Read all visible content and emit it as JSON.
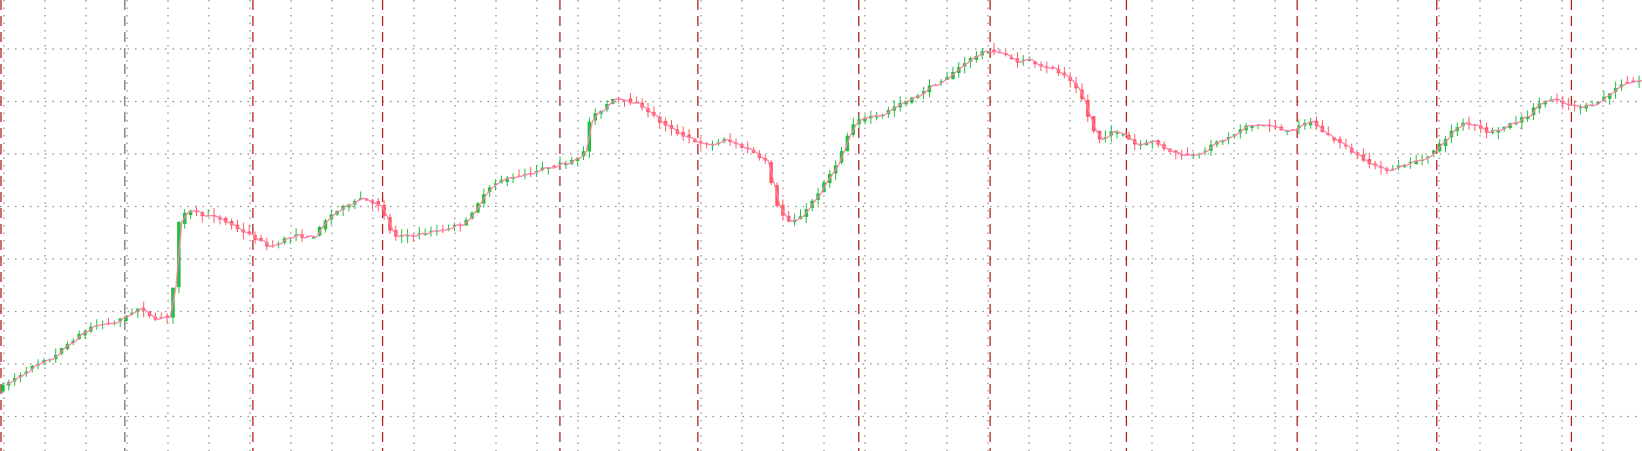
{
  "chart_data": {
    "type": "candlestick",
    "title": "",
    "xlabel": "",
    "ylabel": "",
    "axes_visible": false,
    "grid": {
      "horizontal": "dotted",
      "vertical_minor": "dotted",
      "session_separators": "dashed"
    },
    "colors": {
      "background": "#ffffff",
      "bullish": "#22c03c",
      "bearish": "#ff5a5f",
      "overlay_line": "#ff7fb0",
      "grid": "#8a8a8a",
      "separator": "#b22222"
    },
    "ylim": [
      0,
      100
    ],
    "xlim": [
      0,
      100
    ],
    "n_candles": 280,
    "session_separators_x": [
      0.0,
      7.6,
      15.4,
      23.3,
      34.1,
      42.5,
      52.3,
      60.3,
      68.6,
      79.0,
      87.5,
      95.7
    ],
    "price_path": [
      [
        0.0,
        5.2
      ],
      [
        2.0,
        11.0
      ],
      [
        3.3,
        13.5
      ],
      [
        4.5,
        18.0
      ],
      [
        5.8,
        22.0
      ],
      [
        7.3,
        23.0
      ],
      [
        8.5,
        26.5
      ],
      [
        9.6,
        24.0
      ],
      [
        10.5,
        24.5
      ],
      [
        10.7,
        31.0
      ],
      [
        10.95,
        48.0
      ],
      [
        11.4,
        51.0
      ],
      [
        11.8,
        52.3
      ],
      [
        12.5,
        51.0
      ],
      [
        13.6,
        49.8
      ],
      [
        14.8,
        47.0
      ],
      [
        15.8,
        44.5
      ],
      [
        16.6,
        42.5
      ],
      [
        17.4,
        44.5
      ],
      [
        18.2,
        45.5
      ],
      [
        19.2,
        45.0
      ],
      [
        20.3,
        51.0
      ],
      [
        21.1,
        53.0
      ],
      [
        22.0,
        55.5
      ],
      [
        23.1,
        54.0
      ],
      [
        23.7,
        49.5
      ],
      [
        24.1,
        45.0
      ],
      [
        24.8,
        45.5
      ],
      [
        25.8,
        46.0
      ],
      [
        27.0,
        47.0
      ],
      [
        28.2,
        48.5
      ],
      [
        29.0,
        51.5
      ],
      [
        29.8,
        58.0
      ],
      [
        31.0,
        60.5
      ],
      [
        32.5,
        62.0
      ],
      [
        33.6,
        63.5
      ],
      [
        34.6,
        64.5
      ],
      [
        35.7,
        67.0
      ],
      [
        36.1,
        76.0
      ],
      [
        36.7,
        78.0
      ],
      [
        37.5,
        81.5
      ],
      [
        38.3,
        81.0
      ],
      [
        39.4,
        79.0
      ],
      [
        40.4,
        75.0
      ],
      [
        41.3,
        72.5
      ],
      [
        42.2,
        71.0
      ],
      [
        42.7,
        69.5
      ],
      [
        43.3,
        69.0
      ],
      [
        44.3,
        70.5
      ],
      [
        45.2,
        69.0
      ],
      [
        46.0,
        67.5
      ],
      [
        46.8,
        65.0
      ],
      [
        47.2,
        58.0
      ],
      [
        47.6,
        52.0
      ],
      [
        48.3,
        48.5
      ],
      [
        49.0,
        51.0
      ],
      [
        49.8,
        55.5
      ],
      [
        50.5,
        60.0
      ],
      [
        51.3,
        66.0
      ],
      [
        52.0,
        74.0
      ],
      [
        52.8,
        76.5
      ],
      [
        53.8,
        77.0
      ],
      [
        54.8,
        79.5
      ],
      [
        55.8,
        81.5
      ],
      [
        56.8,
        84.5
      ],
      [
        57.8,
        86.5
      ],
      [
        58.8,
        90.5
      ],
      [
        59.8,
        93.0
      ],
      [
        60.5,
        94.0
      ],
      [
        61.2,
        93.0
      ],
      [
        62.0,
        91.0
      ],
      [
        62.8,
        91.5
      ],
      [
        63.5,
        90.0
      ],
      [
        64.3,
        89.0
      ],
      [
        65.0,
        87.0
      ],
      [
        65.6,
        84.5
      ],
      [
        66.2,
        80.0
      ],
      [
        66.6,
        74.0
      ],
      [
        67.1,
        70.5
      ],
      [
        67.8,
        72.5
      ],
      [
        68.6,
        72.0
      ],
      [
        69.4,
        69.0
      ],
      [
        70.2,
        70.5
      ],
      [
        71.0,
        68.5
      ],
      [
        71.8,
        67.0
      ],
      [
        72.6,
        66.5
      ],
      [
        73.4,
        67.5
      ],
      [
        74.3,
        70.0
      ],
      [
        75.2,
        71.5
      ],
      [
        76.0,
        74.0
      ],
      [
        76.8,
        74.5
      ],
      [
        77.6,
        74.0
      ],
      [
        78.3,
        73.0
      ],
      [
        79.1,
        73.5
      ],
      [
        80.0,
        75.5
      ],
      [
        80.6,
        73.0
      ],
      [
        81.3,
        71.0
      ],
      [
        82.0,
        69.0
      ],
      [
        82.8,
        66.5
      ],
      [
        83.6,
        64.5
      ],
      [
        84.4,
        62.5
      ],
      [
        85.2,
        63.5
      ],
      [
        86.0,
        64.5
      ],
      [
        86.8,
        65.5
      ],
      [
        87.6,
        68.0
      ],
      [
        88.4,
        72.0
      ],
      [
        89.2,
        75.0
      ],
      [
        90.0,
        74.5
      ],
      [
        90.8,
        72.5
      ],
      [
        91.6,
        73.5
      ],
      [
        92.4,
        75.0
      ],
      [
        93.2,
        77.0
      ],
      [
        94.0,
        80.5
      ],
      [
        94.8,
        81.0
      ],
      [
        95.6,
        79.5
      ],
      [
        96.4,
        79.0
      ],
      [
        97.2,
        80.0
      ],
      [
        98.0,
        82.0
      ],
      [
        99.0,
        85.5
      ],
      [
        100.0,
        86.0
      ]
    ]
  }
}
